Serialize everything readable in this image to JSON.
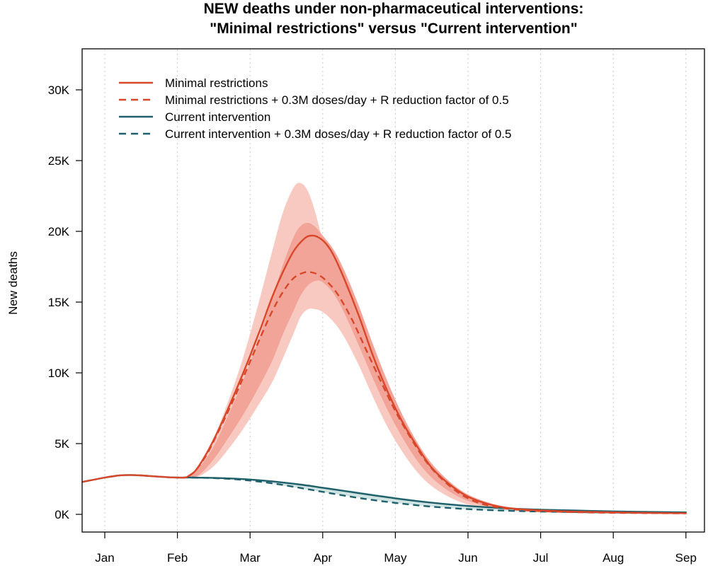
{
  "chart_data": {
    "type": "line",
    "title": [
      "NEW deaths under non-pharmaceutical interventions:",
      "\"Minimal restrictions\" versus \"Current intervention\""
    ],
    "xlabel": "",
    "ylabel": "New deaths",
    "ylim": [
      0,
      32000
    ],
    "yticks": [
      0,
      5000,
      10000,
      15000,
      20000,
      25000,
      30000
    ],
    "ytick_labels": [
      "0K",
      "5K",
      "10K",
      "15K",
      "20K",
      "25K",
      "30K"
    ],
    "xlim": [
      -0.45,
      8.2
    ],
    "xticks": [
      0,
      1,
      2,
      3,
      4,
      5,
      6,
      7,
      8
    ],
    "xtick_labels": [
      "Jan",
      "Feb",
      "Mar",
      "Apr",
      "May",
      "Jun",
      "Jul",
      "Aug",
      "Sep"
    ],
    "x_units": "months from start of January",
    "grid": "vertical dotted at month ticks",
    "legend_position": "top-left",
    "series": [
      {
        "name": "Minimal restrictions",
        "color": "#d9472b",
        "dash": "solid",
        "x": [
          -0.3,
          -0.15,
          0,
          0.2,
          0.35,
          0.5,
          0.7,
          0.85,
          1.0,
          1.1,
          1.15,
          1.25,
          1.4,
          1.55,
          1.7,
          1.85,
          2.0,
          2.15,
          2.3,
          2.45,
          2.6,
          2.75,
          2.85,
          2.95,
          3.05,
          3.15,
          3.3,
          3.5,
          3.7,
          3.9,
          4.1,
          4.3,
          4.5,
          4.75,
          5.0,
          5.3,
          5.6,
          6.0,
          6.5,
          7.0,
          7.5,
          8.0
        ],
        "y": [
          2300,
          2450,
          2600,
          2750,
          2780,
          2750,
          2680,
          2630,
          2600,
          2600,
          2700,
          3100,
          4300,
          5800,
          7500,
          9300,
          11200,
          13200,
          15300,
          17100,
          18600,
          19500,
          19700,
          19550,
          19100,
          18300,
          16600,
          14000,
          11100,
          8600,
          6500,
          4800,
          3300,
          2100,
          1250,
          700,
          420,
          280,
          190,
          140,
          100,
          80
        ]
      },
      {
        "name": "Minimal restrictions + 0.3M doses/day + R reduction factor of 0.5",
        "color": "#d9472b",
        "dash": "dashed",
        "x": [
          1.15,
          1.25,
          1.4,
          1.55,
          1.7,
          1.85,
          2.0,
          2.15,
          2.3,
          2.45,
          2.6,
          2.75,
          2.85,
          2.95,
          3.05,
          3.2,
          3.4,
          3.6,
          3.8,
          4.0,
          4.2,
          4.4,
          4.6,
          4.85,
          5.1,
          5.4,
          5.8,
          6.2,
          6.8,
          7.4,
          8.0
        ],
        "y": [
          2700,
          3100,
          4200,
          5700,
          7300,
          9000,
          10800,
          12600,
          14300,
          15700,
          16700,
          17100,
          17100,
          16900,
          16500,
          15600,
          13800,
          11600,
          9400,
          7300,
          5500,
          3900,
          2700,
          1600,
          900,
          500,
          280,
          190,
          120,
          90,
          70
        ]
      },
      {
        "name": "Current intervention",
        "color": "#1e5f6a",
        "dash": "solid",
        "x": [
          -0.3,
          -0.15,
          0,
          0.2,
          0.35,
          0.5,
          0.7,
          0.85,
          1.0,
          1.2,
          1.5,
          1.8,
          2.1,
          2.4,
          2.7,
          3.0,
          3.3,
          3.6,
          4.0,
          4.4,
          4.8,
          5.2,
          5.6,
          6.0,
          6.5,
          7.0,
          7.5,
          8.0
        ],
        "y": [
          2300,
          2450,
          2600,
          2750,
          2780,
          2750,
          2680,
          2630,
          2600,
          2600,
          2580,
          2520,
          2420,
          2280,
          2100,
          1880,
          1650,
          1420,
          1130,
          880,
          680,
          520,
          410,
          330,
          270,
          210,
          170,
          140
        ]
      },
      {
        "name": "Current intervention + 0.3M doses/day + R reduction factor of 0.5",
        "color": "#1e5f6a",
        "dash": "dashed",
        "x": [
          1.2,
          1.5,
          1.8,
          2.1,
          2.4,
          2.7,
          3.0,
          3.3,
          3.6,
          4.0,
          4.4,
          4.8,
          5.2,
          5.6,
          6.0,
          6.5,
          7.0,
          7.5,
          8.0
        ],
        "y": [
          2600,
          2560,
          2480,
          2330,
          2120,
          1860,
          1590,
          1320,
          1080,
          810,
          590,
          430,
          320,
          250,
          200,
          160,
          130,
          110,
          100
        ]
      }
    ],
    "bands": [
      {
        "name": "Minimal restrictions outer interval",
        "color": "#f8c9c0",
        "x": [
          1.15,
          1.3,
          1.5,
          1.7,
          1.9,
          2.1,
          2.3,
          2.45,
          2.6,
          2.7,
          2.8,
          2.9,
          3.0,
          3.15,
          3.3,
          3.5,
          3.7,
          3.9,
          4.1,
          4.3,
          4.5,
          4.75,
          5.0,
          5.3,
          5.6,
          6.0,
          6.5
        ],
        "upper": [
          2700,
          3500,
          5400,
          8000,
          11000,
          14600,
          18500,
          21300,
          23100,
          23400,
          22800,
          21300,
          19400,
          17200,
          15300,
          13000,
          10600,
          8300,
          6300,
          4600,
          3200,
          2000,
          1200,
          700,
          450,
          300,
          200
        ],
        "lower": [
          2600,
          2700,
          3400,
          4600,
          6000,
          7600,
          9300,
          11000,
          12800,
          14000,
          14500,
          14500,
          14300,
          13600,
          12500,
          10500,
          8200,
          6100,
          4400,
          3000,
          2000,
          1200,
          700,
          400,
          250,
          180,
          130
        ]
      },
      {
        "name": "Minimal restrictions inner interval",
        "color": "#f1a497",
        "x": [
          1.15,
          1.3,
          1.5,
          1.7,
          1.9,
          2.1,
          2.3,
          2.45,
          2.6,
          2.7,
          2.8,
          2.9,
          3.0,
          3.15,
          3.3,
          3.5,
          3.7,
          3.9,
          4.1,
          4.3,
          4.5,
          4.75,
          5.0,
          5.3,
          5.6,
          6.0
        ],
        "upper": [
          2700,
          3300,
          4800,
          7000,
          9400,
          12100,
          15200,
          17600,
          19600,
          20400,
          20600,
          20300,
          19700,
          18700,
          17200,
          14700,
          11900,
          9300,
          7000,
          5100,
          3600,
          2300,
          1400,
          800,
          480,
          300
        ],
        "lower": [
          2600,
          2800,
          3900,
          5400,
          7000,
          8800,
          10800,
          12700,
          14400,
          15500,
          16200,
          16500,
          16400,
          15600,
          14200,
          11900,
          9500,
          7300,
          5400,
          3800,
          2600,
          1600,
          950,
          550,
          340,
          220
        ]
      },
      {
        "name": "Current intervention interval",
        "color": "#cfe3e2",
        "x": [
          1.2,
          1.6,
          2.0,
          2.4,
          2.8,
          3.2,
          3.6,
          4.0,
          4.4,
          4.8,
          5.2,
          5.6,
          6.0,
          6.5,
          7.0,
          7.5,
          8.0
        ],
        "upper": [
          2620,
          2600,
          2520,
          2330,
          2080,
          1810,
          1520,
          1220,
          950,
          730,
          560,
          440,
          350,
          280,
          220,
          180,
          150
        ],
        "lower": [
          2580,
          2500,
          2380,
          2080,
          1750,
          1420,
          1110,
          820,
          590,
          420,
          300,
          230,
          180,
          140,
          110,
          90,
          80
        ]
      }
    ],
    "legend": [
      {
        "label": "Minimal restrictions",
        "color": "#d9472b",
        "dash": "solid"
      },
      {
        "label": "Minimal restrictions + 0.3M doses/day + R reduction factor of 0.5",
        "color": "#d9472b",
        "dash": "dashed"
      },
      {
        "label": "Current intervention",
        "color": "#1e5f6a",
        "dash": "solid"
      },
      {
        "label": "Current intervention + 0.3M doses/day + R reduction factor of 0.5",
        "color": "#1e5f6a",
        "dash": "dashed"
      }
    ]
  }
}
